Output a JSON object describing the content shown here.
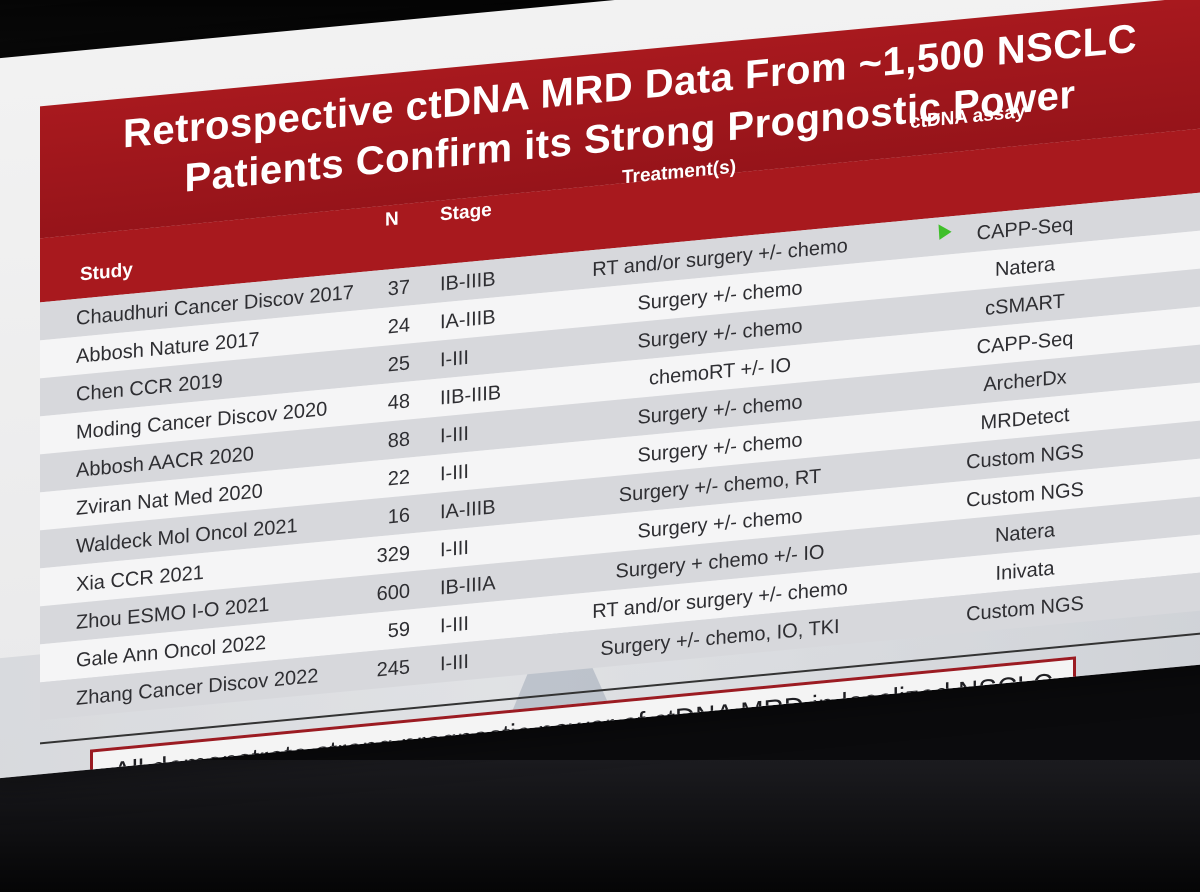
{
  "slide": {
    "title_line1": "Retrospective ctDNA MRD Data From ~1,500 NSCLC",
    "title_line2": "Patients Confirm its Strong Prognostic Power",
    "columns": {
      "study": "Study",
      "n": "N",
      "stage": "Stage",
      "treatment": "Treatment(s)",
      "assay": "ctDNA assay"
    },
    "rows": [
      {
        "study": "Chaudhuri Cancer Discov 2017",
        "n": "37",
        "stage": "IB-IIIB",
        "treatment": "RT and/or surgery +/- chemo",
        "assay": "CAPP-Seq"
      },
      {
        "study": "Abbosh Nature 2017",
        "n": "24",
        "stage": "IA-IIIB",
        "treatment": "Surgery +/- chemo",
        "assay": "Natera"
      },
      {
        "study": "Chen CCR 2019",
        "n": "25",
        "stage": "I-III",
        "treatment": "Surgery +/- chemo",
        "assay": "cSMART"
      },
      {
        "study": "Moding Cancer Discov 2020",
        "n": "48",
        "stage": "IIB-IIIB",
        "treatment": "chemoRT +/- IO",
        "assay": "CAPP-Seq"
      },
      {
        "study": "Abbosh AACR 2020",
        "n": "88",
        "stage": "I-III",
        "treatment": "Surgery +/- chemo",
        "assay": "ArcherDx"
      },
      {
        "study": "Zviran Nat Med 2020",
        "n": "22",
        "stage": "I-III",
        "treatment": "Surgery +/- chemo",
        "assay": "MRDetect"
      },
      {
        "study": "Waldeck Mol Oncol 2021",
        "n": "16",
        "stage": "IA-IIIB",
        "treatment": "Surgery +/- chemo, RT",
        "assay": "Custom NGS"
      },
      {
        "study": "Xia CCR 2021",
        "n": "329",
        "stage": "I-III",
        "treatment": "Surgery +/- chemo",
        "assay": "Custom NGS"
      },
      {
        "study": "Zhou ESMO I-O 2021",
        "n": "600",
        "stage": "IB-IIIA",
        "treatment": "Surgery + chemo +/- IO",
        "assay": "Natera"
      },
      {
        "study": "Gale Ann Oncol 2022",
        "n": "59",
        "stage": "I-III",
        "treatment": "RT and/or surgery +/- chemo",
        "assay": "Inivata"
      },
      {
        "study": "Zhang Cancer Discov 2022",
        "n": "245",
        "stage": "I-III",
        "treatment": "Surgery +/- chemo, IO, TKI",
        "assay": "Custom NGS"
      }
    ],
    "callout": "All demonstrate strong prognostic power of ctDNA MRD in localized NSCLC"
  },
  "colors": {
    "accent": "#a8191e",
    "shade_row": "#d7d8dc",
    "callout_border": "#9b1b22"
  },
  "toolbar_icons": [
    "prev-icon",
    "next-icon",
    "pen-icon",
    "slides-icon",
    "zoom-icon",
    "more-icon",
    "camera-icon"
  ]
}
